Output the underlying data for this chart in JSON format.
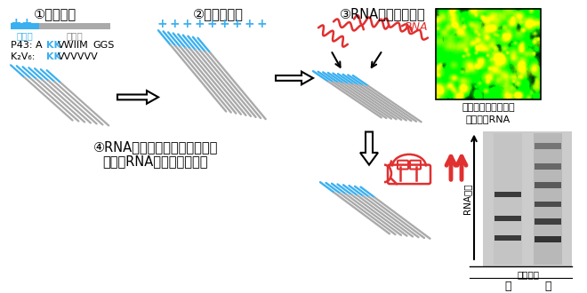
{
  "bg_color": "#ffffff",
  "text_black": "#000000",
  "text_blue": "#3bb0f0",
  "text_red": "#e03030",
  "text_gray": "#888888",
  "step1_title": "①ペプチド",
  "step2_title": "②凝集体形成",
  "step3_title": "③RNAの結合・濃縮",
  "step4_line1": "④RNAポリメラーゼリボザイム",
  "step4_line2": "によるRNA合成反応の促進",
  "label_basic": "塩基性",
  "label_hydro": "疏水性",
  "p43_prefix": "P43: A",
  "p43_blue": "KK",
  "p43_mid": "VWIIM",
  "p43_suffix": "GGS",
  "k2v6_prefix": "K₂V₆: ",
  "k2v6_blue": "KK",
  "k2v6_suffix": "VVVVVV",
  "rna_label": "RNA",
  "img_caption1": "ペプチド凝集体上の",
  "img_caption2": "蛍光標識RNA",
  "peptide_label": "ペプチド",
  "rna_synth_label": "RNA合成",
  "minus_label": "－",
  "plus_label": "＋"
}
